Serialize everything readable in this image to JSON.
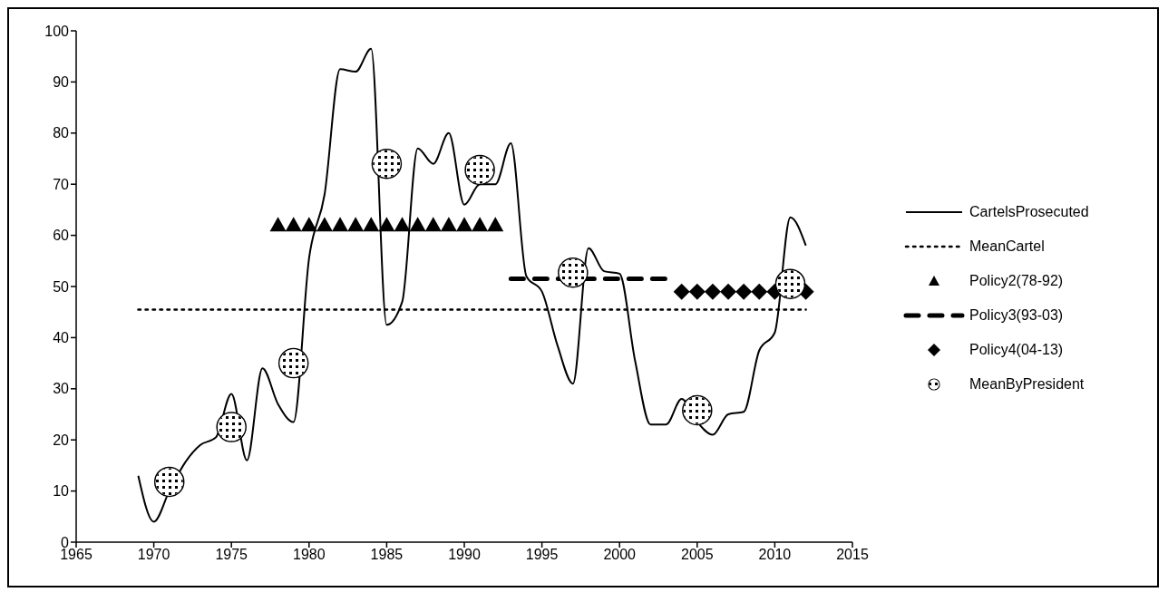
{
  "chart_data": {
    "type": "line",
    "x": [
      1969,
      1970,
      1971,
      1972,
      1973,
      1974,
      1975,
      1976,
      1977,
      1978,
      1979,
      1980,
      1981,
      1982,
      1983,
      1984,
      1985,
      1986,
      1987,
      1988,
      1989,
      1990,
      1991,
      1992,
      1993,
      1994,
      1995,
      1996,
      1997,
      1998,
      1999,
      2000,
      2001,
      2002,
      2003,
      2004,
      2005,
      2006,
      2007,
      2008,
      2009,
      2010,
      2011,
      2012
    ],
    "series": [
      {
        "name": "CartelsProsecuted",
        "color": "#000000",
        "line_style": "solid",
        "marker": "none",
        "values": [
          13,
          4,
          10,
          15.5,
          19,
          20.5,
          29,
          16,
          34,
          27,
          23.5,
          55.5,
          68,
          92.5,
          92,
          96.5,
          42.5,
          47,
          77,
          74,
          80,
          66,
          70,
          70,
          78,
          52,
          49,
          38.5,
          31,
          57.5,
          53,
          52.5,
          35.5,
          23,
          23,
          28,
          23.5,
          21,
          25,
          25.5,
          37.5,
          41,
          63.5,
          58
        ]
      },
      {
        "name": "MeanCartel",
        "color": "#000000",
        "line_style": "dotted",
        "marker": "none",
        "x": [
          1969,
          2012
        ],
        "values": [
          45.5,
          45.5
        ]
      },
      {
        "name": "Policy2(78-92)",
        "type": "scatter",
        "color": "#000000",
        "marker": "triangle",
        "x": [
          1978,
          1979,
          1980,
          1981,
          1982,
          1983,
          1984,
          1985,
          1986,
          1987,
          1988,
          1989,
          1990,
          1991,
          1992
        ],
        "values": [
          62,
          62,
          62,
          62,
          62,
          62,
          62,
          62,
          62,
          62,
          62,
          62,
          62,
          62,
          62
        ]
      },
      {
        "name": "Policy3(93-03)",
        "color": "#000000",
        "line_style": "dashed",
        "marker": "none",
        "x": [
          1993,
          2003
        ],
        "values": [
          51.5,
          51.5
        ]
      },
      {
        "name": "Policy4(04-13)",
        "type": "scatter",
        "color": "#000000",
        "marker": "diamond",
        "x": [
          2004,
          2005,
          2006,
          2007,
          2008,
          2009,
          2010,
          2011,
          2012
        ],
        "values": [
          49,
          49,
          49,
          49,
          49,
          49,
          49,
          null,
          49
        ]
      },
      {
        "name": "MeanByPresident",
        "type": "scatter",
        "color": "#000000",
        "marker": "circle",
        "x": [
          1971,
          1975,
          1979,
          1985,
          1991,
          1997,
          2005,
          2011
        ],
        "values": [
          11.8,
          22.5,
          35,
          74,
          72.8,
          52.7,
          25.8,
          50.5
        ]
      }
    ],
    "xlim": [
      1965,
      2015
    ],
    "xticks": [
      1965,
      1970,
      1975,
      1980,
      1985,
      1990,
      1995,
      2000,
      2005,
      2010,
      2015
    ],
    "ylim": [
      0,
      100
    ],
    "yticks": [
      0,
      10,
      20,
      30,
      40,
      50,
      60,
      70,
      80,
      90,
      100
    ],
    "grid": false,
    "legend": "right"
  }
}
